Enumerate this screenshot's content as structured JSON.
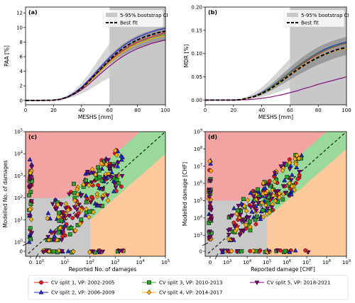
{
  "chart_data": [
    {
      "id": "a",
      "type": "line",
      "panel_label": "(a)",
      "xlabel": "MESHS [mm]",
      "ylabel": "PAA [%]",
      "xlim": [
        0,
        100
      ],
      "ylim": [
        -0.6,
        12.8
      ],
      "xticks": [
        "0",
        "20",
        "40",
        "60",
        "80",
        "100"
      ],
      "xtick_values": [
        0,
        20,
        40,
        60,
        80,
        100
      ],
      "yticks": [
        "0",
        "2",
        "4",
        "6",
        "8",
        "10",
        "12"
      ],
      "ytick_values": [
        0,
        2,
        4,
        6,
        8,
        10,
        12
      ],
      "legend": {
        "placement": "top-right",
        "ci_label": "5-95% bootstrap CI",
        "fit_label": "Best fit"
      },
      "ci_region_x_from": 60,
      "x": [
        0,
        10,
        20,
        25,
        30,
        35,
        40,
        45,
        50,
        55,
        60,
        65,
        70,
        75,
        80,
        85,
        90,
        95,
        100
      ],
      "ci_outer": {
        "lower": [
          0,
          0,
          0.02,
          0.1,
          0.25,
          0.5,
          0.9,
          1.4,
          2.0,
          2.6,
          3.1,
          3.6,
          4.0,
          4.5,
          4.9,
          5.3,
          5.7,
          6.0,
          6.3
        ],
        "upper": [
          0,
          0,
          0.05,
          0.25,
          0.7,
          1.4,
          2.4,
          3.6,
          5.0,
          6.4,
          7.8,
          9.0,
          10.0,
          10.8,
          11.4,
          11.9,
          12.2,
          12.4,
          12.6
        ]
      },
      "ci_inner": {
        "lower": [
          0,
          0,
          0.03,
          0.15,
          0.4,
          0.85,
          1.5,
          2.3,
          3.2,
          4.1,
          5.0,
          5.7,
          6.3,
          6.8,
          7.2,
          7.5,
          7.8,
          8.0,
          8.2
        ],
        "upper": [
          0,
          0,
          0.04,
          0.2,
          0.55,
          1.1,
          1.9,
          2.9,
          4.0,
          5.1,
          6.1,
          7.0,
          7.8,
          8.4,
          8.9,
          9.3,
          9.6,
          9.9,
          10.1
        ]
      },
      "series": [
        {
          "name": "Best fit",
          "values": [
            0,
            0,
            0.03,
            0.15,
            0.45,
            0.95,
            1.65,
            2.55,
            3.55,
            4.55,
            5.55,
            6.45,
            7.2,
            7.8,
            8.3,
            8.7,
            9.0,
            9.3,
            9.5
          ]
        },
        {
          "name": "CV split 1, VP: 2002-2005",
          "values": [
            0,
            0,
            0.04,
            0.18,
            0.5,
            1.0,
            1.7,
            2.6,
            3.55,
            4.5,
            5.4,
            6.2,
            6.9,
            7.5,
            8.0,
            8.4,
            8.7,
            9.0,
            9.3
          ]
        },
        {
          "name": "CV split 2, VP: 2006-2009",
          "values": [
            0,
            0,
            0.03,
            0.17,
            0.5,
            1.05,
            1.8,
            2.75,
            3.8,
            4.85,
            5.85,
            6.75,
            7.5,
            8.15,
            8.65,
            9.05,
            9.4,
            9.7,
            9.9
          ]
        },
        {
          "name": "CV split 3, VP: 2010-2013",
          "values": [
            0,
            0,
            0.03,
            0.15,
            0.45,
            0.9,
            1.6,
            2.45,
            3.4,
            4.35,
            5.25,
            6.05,
            6.75,
            7.3,
            7.8,
            8.2,
            8.5,
            8.8,
            9.0
          ]
        },
        {
          "name": "CV split 4, VP: 2014-2017",
          "values": [
            0,
            0,
            0.03,
            0.15,
            0.42,
            0.88,
            1.55,
            2.4,
            3.35,
            4.3,
            5.2,
            6.0,
            6.7,
            7.25,
            7.75,
            8.1,
            8.45,
            8.7,
            8.9
          ]
        },
        {
          "name": "CV split 5, VP: 2018-2021",
          "values": [
            0,
            0,
            0.03,
            0.15,
            0.42,
            0.85,
            1.45,
            2.2,
            3.05,
            3.9,
            4.7,
            5.45,
            6.1,
            6.65,
            7.1,
            7.45,
            7.8,
            8.05,
            8.3
          ]
        }
      ]
    },
    {
      "id": "b",
      "type": "line",
      "panel_label": "(b)",
      "xlabel": "MESHS [mm]",
      "ylabel": "MDR [%]",
      "xlim": [
        0,
        100
      ],
      "ylim": [
        -0.01,
        0.2
      ],
      "xticks": [
        "0",
        "20",
        "40",
        "60",
        "80",
        "100"
      ],
      "xtick_values": [
        0,
        20,
        40,
        60,
        80,
        100
      ],
      "yticks": [
        "0.00",
        "0.05",
        "0.10",
        "0.15",
        "0.20"
      ],
      "ytick_values": [
        0,
        0.05,
        0.1,
        0.15,
        0.2
      ],
      "legend": {
        "placement": "top-right",
        "ci_label": "5-95% bootstrap CI",
        "fit_label": "Best fit"
      },
      "ci_region_x_from": 60,
      "x": [
        0,
        10,
        20,
        25,
        30,
        35,
        40,
        45,
        50,
        55,
        60,
        65,
        70,
        75,
        80,
        85,
        90,
        95,
        100
      ],
      "ci_outer": {
        "lower": [
          0,
          0,
          0,
          0.001,
          0.002,
          0.004,
          0.007,
          0.011,
          0.016,
          0.021,
          0.026,
          0.031,
          0.036,
          0.041,
          0.046,
          0.051,
          0.055,
          0.059,
          0.063
        ],
        "upper": [
          0,
          0,
          0.001,
          0.003,
          0.008,
          0.016,
          0.027,
          0.041,
          0.057,
          0.073,
          0.089,
          0.104,
          0.117,
          0.128,
          0.137,
          0.144,
          0.149,
          0.153,
          0.156
        ]
      },
      "ci_inner": {
        "lower": [
          0,
          0,
          0,
          0.001,
          0.003,
          0.006,
          0.011,
          0.018,
          0.026,
          0.035,
          0.044,
          0.053,
          0.061,
          0.069,
          0.076,
          0.082,
          0.088,
          0.093,
          0.097
        ],
        "upper": [
          0,
          0,
          0.001,
          0.002,
          0.005,
          0.011,
          0.019,
          0.03,
          0.043,
          0.057,
          0.07,
          0.083,
          0.095,
          0.105,
          0.114,
          0.121,
          0.127,
          0.132,
          0.136
        ]
      },
      "series": [
        {
          "name": "Best fit",
          "values": [
            0,
            0,
            0,
            0.001,
            0.004,
            0.008,
            0.014,
            0.022,
            0.032,
            0.043,
            0.054,
            0.065,
            0.075,
            0.084,
            0.092,
            0.099,
            0.105,
            0.11,
            0.113
          ]
        },
        {
          "name": "CV split 1, VP: 2002-2005",
          "values": [
            0,
            0,
            0,
            0.001,
            0.004,
            0.008,
            0.015,
            0.024,
            0.034,
            0.046,
            0.058,
            0.069,
            0.08,
            0.09,
            0.099,
            0.107,
            0.113,
            0.118,
            0.122
          ]
        },
        {
          "name": "CV split 2, VP: 2006-2009",
          "values": [
            0,
            0,
            0,
            0.001,
            0.004,
            0.009,
            0.016,
            0.025,
            0.036,
            0.048,
            0.06,
            0.072,
            0.083,
            0.093,
            0.102,
            0.11,
            0.116,
            0.121,
            0.125
          ]
        },
        {
          "name": "CV split 3, VP: 2010-2013",
          "values": [
            0,
            0,
            0,
            0.001,
            0.004,
            0.008,
            0.015,
            0.024,
            0.035,
            0.047,
            0.059,
            0.071,
            0.082,
            0.092,
            0.101,
            0.108,
            0.114,
            0.119,
            0.123
          ]
        },
        {
          "name": "CV split 4, VP: 2014-2017",
          "values": [
            0,
            0,
            0,
            0.001,
            0.004,
            0.008,
            0.014,
            0.022,
            0.032,
            0.043,
            0.054,
            0.065,
            0.075,
            0.084,
            0.092,
            0.099,
            0.104,
            0.108,
            0.112
          ]
        },
        {
          "name": "CV split 5, VP: 2018-2021",
          "values": [
            0,
            0,
            0,
            0.0005,
            0.001,
            0.002,
            0.004,
            0.006,
            0.009,
            0.012,
            0.016,
            0.02,
            0.025,
            0.029,
            0.034,
            0.038,
            0.042,
            0.046,
            0.05
          ]
        }
      ]
    },
    {
      "id": "c",
      "type": "scatter",
      "panel_label": "(c)",
      "xlabel": "Reported No. of  damages",
      "ylabel": "Modelled No. of  damages",
      "scale": "symlog (0 shown separately, broken axis, log10 above 1)",
      "xlim": [
        0,
        5
      ],
      "ylim": [
        0,
        5
      ],
      "xtick_labels": [
        {
          "value": 0,
          "base": "0",
          "exp": ""
        },
        {
          "value": 1,
          "base": "10",
          "exp": "0"
        },
        {
          "value": 10,
          "base": "10",
          "exp": "1"
        },
        {
          "value": 100,
          "base": "10",
          "exp": "2"
        },
        {
          "value": 1000,
          "base": "10",
          "exp": "3"
        },
        {
          "value": 10000,
          "base": "10",
          "exp": "4"
        },
        {
          "value": 100000,
          "base": "10",
          "exp": "5"
        }
      ],
      "ytick_labels": [
        {
          "value": 0,
          "base": "0",
          "exp": ""
        },
        {
          "value": 1,
          "base": "10",
          "exp": "0"
        },
        {
          "value": 10,
          "base": "10",
          "exp": "1"
        },
        {
          "value": 100,
          "base": "10",
          "exp": "2"
        },
        {
          "value": 1000,
          "base": "10",
          "exp": "3"
        },
        {
          "value": 10000,
          "base": "10",
          "exp": "4"
        },
        {
          "value": 100000,
          "base": "10",
          "exp": "5"
        }
      ],
      "regions": {
        "red": "overestimation (modelled damages with no/low reported)",
        "green": "within factor 10",
        "orange": "underestimation",
        "grey": "both below threshold"
      },
      "threshold": 100,
      "max_log": 5,
      "points_per_split": 60
    },
    {
      "id": "d",
      "type": "scatter",
      "panel_label": "(d)",
      "xlabel": "Reported  damage [CHF]",
      "ylabel": "Modelled  damage [CHF]",
      "scale": "symlog (0 shown separately, broken axis, log10 above 1)",
      "xlim": [
        0,
        9
      ],
      "ylim": [
        0,
        9
      ],
      "xtick_labels": [
        {
          "value": 0,
          "base": "0",
          "exp": ""
        },
        {
          "value": 1000,
          "base": "10",
          "exp": "3"
        },
        {
          "value": 10000,
          "base": "10",
          "exp": "4"
        },
        {
          "value": 100000,
          "base": "10",
          "exp": "5"
        },
        {
          "value": 1000000,
          "base": "10",
          "exp": "6"
        },
        {
          "value": 10000000,
          "base": "10",
          "exp": "7"
        },
        {
          "value": 100000000,
          "base": "10",
          "exp": "8"
        },
        {
          "value": 1000000000,
          "base": "10",
          "exp": "9"
        }
      ],
      "ytick_labels": [
        {
          "value": 0,
          "base": "0",
          "exp": ""
        },
        {
          "value": 1000,
          "base": "10",
          "exp": "3"
        },
        {
          "value": 10000,
          "base": "10",
          "exp": "4"
        },
        {
          "value": 100000,
          "base": "10",
          "exp": "5"
        },
        {
          "value": 1000000,
          "base": "10",
          "exp": "6"
        },
        {
          "value": 10000000,
          "base": "10",
          "exp": "7"
        },
        {
          "value": 100000000,
          "base": "10",
          "exp": "8"
        },
        {
          "value": 1000000000,
          "base": "10",
          "exp": "9"
        }
      ],
      "regions": {
        "red": "overestimation",
        "green": "within factor 10",
        "orange": "underestimation",
        "grey": "both below threshold"
      },
      "threshold": 100000,
      "max_log": 9,
      "points_per_split": 60
    }
  ],
  "legend": [
    {
      "label": "CV split 1, VP: 2002-2005",
      "color": "#e41a1c",
      "marker": "circle"
    },
    {
      "label": "CV split 2, VP: 2006-2009",
      "color": "#1f28d6",
      "marker": "triangle-up"
    },
    {
      "label": "CV split 3, VP: 2010-2013",
      "color": "#2ca02c",
      "marker": "square"
    },
    {
      "label": "CV split 4, VP: 2014-2017",
      "color": "#ffb000",
      "marker": "diamond"
    },
    {
      "label": "CV split 5, VP: 2018-2021",
      "color": "#800080",
      "marker": "triangle-down"
    }
  ],
  "colors": {
    "ci_outer": "#c8c8c8",
    "ci_inner": "#8c8c8c",
    "ci_region_shade": "#bdbdbd",
    "best_fit": "#000000",
    "region_red": "#f4a3a3",
    "region_green": "#9bd89b",
    "region_orange": "#fdc89a",
    "region_grey": "#c9c9c9"
  }
}
